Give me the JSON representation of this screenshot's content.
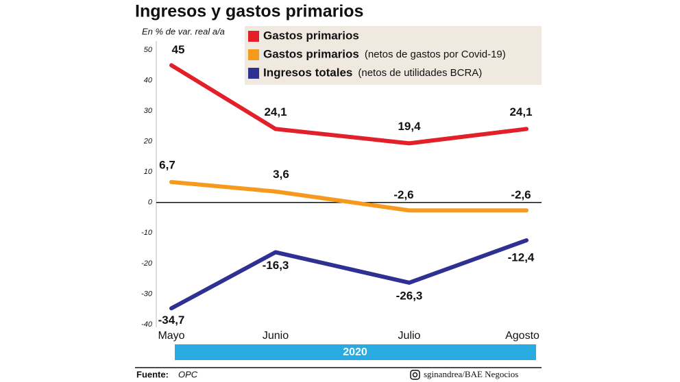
{
  "chart_data": {
    "type": "line",
    "title": "Ingresos y gastos primarios",
    "subtitle": "En % de var. real a/a",
    "categories": [
      "Mayo",
      "Junio",
      "Julio",
      "Agosto"
    ],
    "period": "2020",
    "series": [
      {
        "name": "Gastos primarios",
        "color": "#e3202a",
        "values": [
          45,
          24.1,
          19.4,
          24.1
        ],
        "value_labels": [
          "45",
          "24,1",
          "19,4",
          "24,1"
        ]
      },
      {
        "name": "Gastos primarios",
        "note": "(netos de gastos por Covid-19)",
        "color": "#f59a1e",
        "values": [
          6.7,
          3.6,
          -2.6,
          -2.6
        ],
        "value_labels": [
          "6,7",
          "3,6",
          "-2,6",
          "-2,6"
        ]
      },
      {
        "name": "Ingresos totales",
        "note": "(netos de utilidades BCRA)",
        "color": "#2e3192",
        "values": [
          -34.7,
          -16.3,
          -26.3,
          -12.4
        ],
        "value_labels": [
          "-34,7",
          "-16,3",
          "-26,3",
          "-12,4"
        ]
      }
    ],
    "ylim": [
      -40,
      50
    ],
    "yticks": [
      50,
      40,
      30,
      20,
      10,
      0,
      -10,
      -20,
      -30,
      -40
    ],
    "source_label": "Fuente:",
    "source": "OPC",
    "credit": "sginandrea/BAE Negocios"
  }
}
